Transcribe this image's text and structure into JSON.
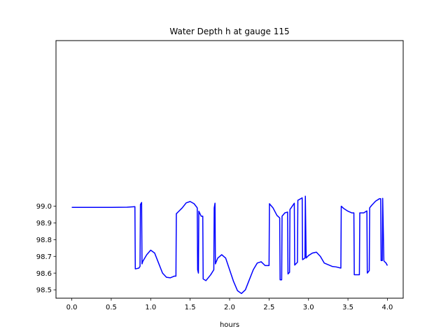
{
  "chart_data": {
    "type": "line",
    "title": "Water Depth h at gauge 115",
    "xlabel": "hours",
    "ylabel": "",
    "xlim": [
      -0.2,
      4.2
    ],
    "ylim": [
      98.45,
      99.99
    ],
    "xticks": [
      0.0,
      0.5,
      1.0,
      1.5,
      2.0,
      2.5,
      3.0,
      3.5,
      4.0
    ],
    "xtick_labels": [
      "0.0",
      "0.5",
      "1.0",
      "1.5",
      "2.0",
      "2.5",
      "3.0",
      "3.5",
      "4.0"
    ],
    "yticks": [
      98.5,
      98.6,
      98.7,
      98.8,
      98.9,
      99.0
    ],
    "ytick_labels": [
      "98.5",
      "98.6",
      "98.7",
      "98.8",
      "98.9",
      "99.0"
    ],
    "grid": false,
    "color": "#0000ff",
    "series": [
      {
        "x": [
          0.0,
          0.2,
          0.5,
          0.7,
          0.8,
          0.805,
          0.85,
          0.865,
          0.87,
          0.885,
          0.89,
          0.9,
          0.95,
          1.0,
          1.05,
          1.1,
          1.15,
          1.2,
          1.25,
          1.3,
          1.32,
          1.325,
          1.4,
          1.45,
          1.5,
          1.55,
          1.59,
          1.595,
          1.605,
          1.61,
          1.64,
          1.66,
          1.665,
          1.7,
          1.76,
          1.8,
          1.805,
          1.815,
          1.82,
          1.85,
          1.9,
          1.95,
          2.0,
          2.05,
          2.1,
          2.15,
          2.2,
          2.25,
          2.3,
          2.35,
          2.4,
          2.45,
          2.5,
          2.505,
          2.55,
          2.6,
          2.635,
          2.64,
          2.66,
          2.665,
          2.7,
          2.735,
          2.74,
          2.76,
          2.765,
          2.82,
          2.825,
          2.86,
          2.865,
          2.92,
          2.925,
          2.955,
          2.96,
          2.97,
          3.0,
          3.05,
          3.1,
          3.15,
          3.2,
          3.3,
          3.35,
          3.41,
          3.415,
          3.45,
          3.5,
          3.55,
          3.575,
          3.58,
          3.645,
          3.65,
          3.7,
          3.74,
          3.745,
          3.77,
          3.775,
          3.8,
          3.85,
          3.9,
          3.915,
          3.92,
          3.935,
          3.94,
          3.955,
          3.96,
          3.98,
          4.0
        ],
        "y": [
          98.993,
          98.993,
          98.993,
          98.994,
          98.997,
          98.625,
          98.63,
          98.64,
          99.01,
          99.022,
          98.655,
          98.67,
          98.71,
          98.737,
          98.72,
          98.66,
          98.6,
          98.575,
          98.572,
          98.582,
          98.582,
          98.955,
          98.99,
          99.02,
          99.028,
          99.015,
          98.99,
          98.62,
          98.6,
          98.97,
          98.94,
          98.94,
          98.565,
          98.555,
          98.59,
          98.62,
          98.99,
          99.018,
          98.655,
          98.69,
          98.71,
          98.69,
          98.62,
          98.55,
          98.495,
          98.478,
          98.5,
          98.56,
          98.62,
          98.66,
          98.668,
          98.645,
          98.645,
          99.015,
          98.99,
          98.945,
          98.93,
          98.56,
          98.56,
          98.94,
          98.96,
          98.965,
          98.595,
          98.605,
          98.98,
          99.018,
          98.648,
          98.665,
          99.035,
          99.05,
          98.68,
          98.69,
          99.06,
          98.69,
          98.705,
          98.72,
          98.725,
          98.7,
          98.66,
          98.64,
          98.637,
          98.63,
          99.0,
          98.985,
          98.97,
          98.96,
          98.96,
          98.59,
          98.59,
          98.96,
          98.96,
          98.972,
          98.6,
          98.615,
          98.99,
          99.005,
          99.03,
          99.045,
          99.045,
          98.675,
          98.675,
          99.047,
          98.675,
          98.67,
          98.662,
          98.645
        ]
      }
    ]
  }
}
